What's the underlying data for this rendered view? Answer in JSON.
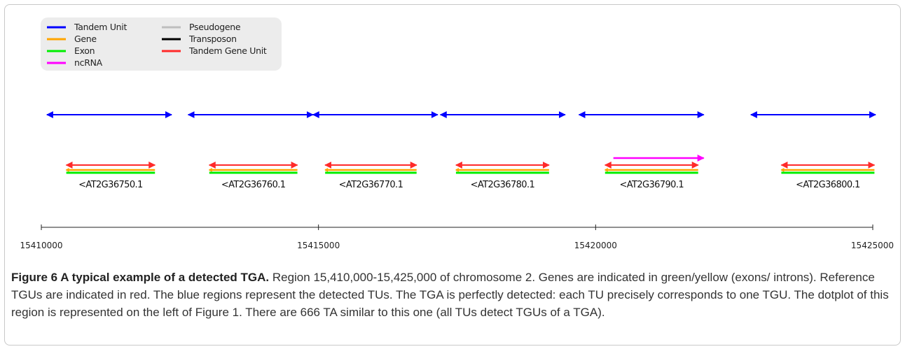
{
  "legend": [
    {
      "label": "Tandem Unit",
      "color": "#0000ff"
    },
    {
      "label": "Gene",
      "color": "#ffa500"
    },
    {
      "label": "Exon",
      "color": "#00ee00"
    },
    {
      "label": "ncRNA",
      "color": "#ff00ff"
    },
    {
      "label": "Pseudogene",
      "color": "#bebebe"
    },
    {
      "label": "Transposon",
      "color": "#000000"
    },
    {
      "label": "Tandem Gene Unit",
      "color": "#ff2a2a"
    }
  ],
  "chart_data": {
    "type": "genome-track",
    "region": {
      "start": 15410000,
      "end": 15425000
    },
    "axis_ticks": [
      {
        "value": 15410000,
        "label": "15410000"
      },
      {
        "value": 15415000,
        "label": "15415000"
      },
      {
        "value": 15420000,
        "label": "15420000"
      },
      {
        "value": 15425000,
        "label": "15425000"
      }
    ],
    "tandem_units": [
      {
        "start": 15410100,
        "end": 15412350
      },
      {
        "start": 15412650,
        "end": 15414900
      },
      {
        "start": 15414900,
        "end": 15417150
      },
      {
        "start": 15417200,
        "end": 15419450
      },
      {
        "start": 15419700,
        "end": 15421950
      },
      {
        "start": 15422800,
        "end": 15425050
      }
    ],
    "tandem_gene_units": [
      {
        "start": 15410450,
        "end": 15412050
      },
      {
        "start": 15413030,
        "end": 15414620
      },
      {
        "start": 15415120,
        "end": 15416770
      },
      {
        "start": 15417480,
        "end": 15419160
      },
      {
        "start": 15420170,
        "end": 15421850
      },
      {
        "start": 15423350,
        "end": 15425030
      }
    ],
    "genes": [
      {
        "name": "<AT2G36750.1",
        "start": 15410450,
        "end": 15412050
      },
      {
        "name": "<AT2G36760.1",
        "start": 15413030,
        "end": 15414620
      },
      {
        "name": "<AT2G36770.1",
        "start": 15415120,
        "end": 15416770
      },
      {
        "name": "<AT2G36780.1",
        "start": 15417480,
        "end": 15419160
      },
      {
        "name": "<AT2G36790.1",
        "start": 15420170,
        "end": 15421850
      },
      {
        "name": "<AT2G36800.1",
        "start": 15423350,
        "end": 15425030
      }
    ],
    "ncrna": [
      {
        "start": 15420320,
        "end": 15421950
      }
    ]
  },
  "caption": {
    "title": "Figure 6 A typical example of a detected TGA.",
    "text": " Region 15,410,000-15,425,000 of chromosome 2. Genes are indicated in green/yellow (exons/ introns). Reference TGUs are indicated in red. The blue regions represent the detected TUs. The TGA is perfectly detected: each TU precisely corresponds to one TGU. The dotplot of this region is represented on the left of Figure 1. There are 666 TA similar to this one (all TUs detect TGUs of a TGA)."
  }
}
